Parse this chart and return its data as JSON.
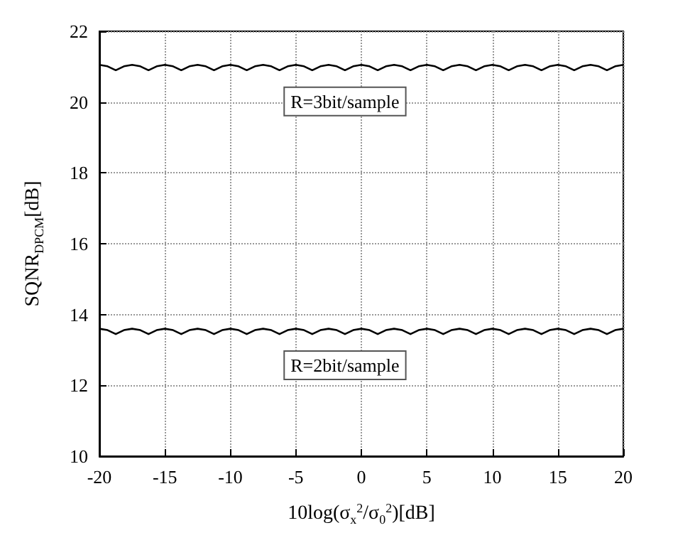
{
  "chart_data": {
    "type": "line",
    "xlabel": "10log(σ$_{x}$$^{2}$/σ$_{0}$$^{2}$)[dB]",
    "ylabel": "SQNR$_{DPCM}$[dB]",
    "x": [
      -20,
      -19.375,
      -18.75,
      -18.125,
      -17.5,
      -16.875,
      -16.25,
      -15.625,
      -15,
      -14.375,
      -13.75,
      -13.125,
      -12.5,
      -11.875,
      -11.25,
      -10.625,
      -10,
      -9.375,
      -8.75,
      -8.125,
      -7.5,
      -6.875,
      -6.25,
      -5.625,
      -5,
      -4.375,
      -3.75,
      -3.125,
      -2.5,
      -1.875,
      -1.25,
      -0.625,
      0,
      0.625,
      1.25,
      1.875,
      2.5,
      3.125,
      3.75,
      4.375,
      5,
      5.625,
      6.25,
      6.875,
      7.5,
      8.125,
      8.75,
      9.375,
      10,
      10.625,
      11.25,
      11.875,
      12.5,
      13.125,
      13.75,
      14.375,
      15,
      15.625,
      16.25,
      16.875,
      17.5,
      18.125,
      18.75,
      19.375,
      20
    ],
    "series": [
      {
        "name": "R=3bit/sample",
        "color": "#000000",
        "values": [
          21.05,
          21.01,
          20.9,
          21.01,
          21.05,
          21.01,
          20.9,
          21.01,
          21.05,
          21.01,
          20.9,
          21.01,
          21.05,
          21.01,
          20.9,
          21.01,
          21.05,
          21.01,
          20.9,
          21.01,
          21.05,
          21.01,
          20.9,
          21.01,
          21.05,
          21.01,
          20.9,
          21.01,
          21.05,
          21.01,
          20.9,
          21.01,
          21.05,
          21.01,
          20.9,
          21.01,
          21.05,
          21.01,
          20.9,
          21.01,
          21.05,
          21.01,
          20.9,
          21.01,
          21.05,
          21.01,
          20.9,
          21.01,
          21.05,
          21.01,
          20.9,
          21.01,
          21.05,
          21.01,
          20.9,
          21.01,
          21.05,
          21.01,
          20.9,
          21.01,
          21.05,
          21.01,
          20.9,
          21.01,
          21.05
        ]
      },
      {
        "name": "R=2bit/sample",
        "color": "#000000",
        "values": [
          13.6,
          13.56,
          13.45,
          13.56,
          13.6,
          13.56,
          13.45,
          13.56,
          13.6,
          13.56,
          13.45,
          13.56,
          13.6,
          13.56,
          13.45,
          13.56,
          13.6,
          13.56,
          13.45,
          13.56,
          13.6,
          13.56,
          13.45,
          13.56,
          13.6,
          13.56,
          13.45,
          13.56,
          13.6,
          13.56,
          13.45,
          13.56,
          13.6,
          13.56,
          13.45,
          13.56,
          13.6,
          13.56,
          13.45,
          13.56,
          13.6,
          13.56,
          13.45,
          13.56,
          13.6,
          13.56,
          13.45,
          13.56,
          13.6,
          13.56,
          13.45,
          13.56,
          13.6,
          13.56,
          13.45,
          13.56,
          13.6,
          13.56,
          13.45,
          13.56,
          13.6,
          13.56,
          13.45,
          13.56,
          13.6
        ]
      }
    ],
    "xlim": [
      -20,
      20
    ],
    "xticks": [
      -20,
      -15,
      -10,
      -5,
      0,
      5,
      10,
      15,
      20
    ],
    "ylim": [
      10,
      22
    ],
    "yticks": [
      10,
      12,
      14,
      16,
      18,
      20,
      22
    ],
    "grid": true,
    "legend": false,
    "marker": "none",
    "line_style": "solid"
  }
}
